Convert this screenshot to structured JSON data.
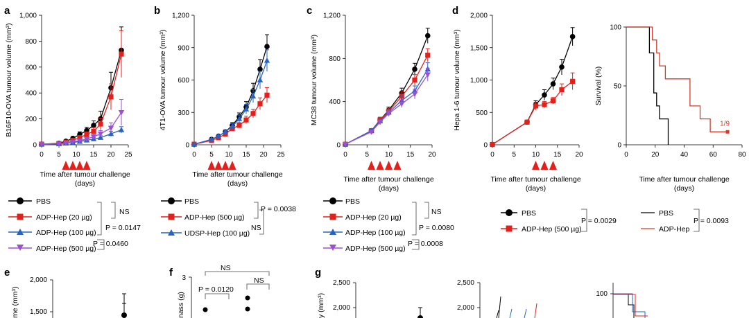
{
  "colors": {
    "PBS": "#000000",
    "ADP20": "#e3211c",
    "ADP100": "#2563c7",
    "ADP500": "#9d4fd3",
    "UDSP": "#2563c7",
    "ADP500_b": "#e3211c",
    "ADP500_c": "#9d4fd3",
    "survival_adp": "#d33a2c",
    "arrow": "#e3211c"
  },
  "figure_notes": {
    "arrow_marker": "red triangles mark treatment days",
    "legend_marker_icons": "circle, square, triangle, inverted-triangle"
  },
  "chart_data": [
    {
      "panel": "a",
      "type": "line",
      "ylabel": "B16F10-OVA tumour volume (mm³)",
      "xlabel": [
        "Time after tumour challenge",
        "(days)"
      ],
      "xlim": [
        0,
        25
      ],
      "ylim": [
        0,
        1000
      ],
      "xticks": [
        "0",
        "5",
        "10",
        "15",
        "20",
        "25"
      ],
      "yticks": [
        "0",
        "200",
        "400",
        "600",
        "800",
        "1,000"
      ],
      "treatment_days": [
        7,
        9,
        11,
        13
      ],
      "x": [
        0,
        5,
        7,
        9,
        11,
        13,
        15,
        17,
        20,
        23
      ],
      "series": [
        {
          "name": "PBS",
          "color_key": "PBS",
          "marker": "circle",
          "values": [
            5,
            12,
            28,
            50,
            80,
            110,
            150,
            200,
            440,
            730
          ],
          "errors": [
            3,
            5,
            8,
            12,
            20,
            25,
            35,
            60,
            120,
            180
          ]
        },
        {
          "name": "ADP-Hep (20 µg)",
          "color_key": "ADP20",
          "marker": "square",
          "values": [
            5,
            10,
            20,
            35,
            55,
            80,
            105,
            160,
            370,
            700
          ],
          "errors": [
            3,
            4,
            6,
            10,
            15,
            20,
            28,
            45,
            100,
            180
          ]
        },
        {
          "name": "ADP-Hep (100 µg)",
          "color_key": "ADP100",
          "marker": "triangle",
          "values": [
            4,
            7,
            12,
            18,
            25,
            35,
            45,
            55,
            85,
            115
          ],
          "errors": [
            2,
            3,
            4,
            6,
            8,
            10,
            12,
            15,
            20,
            25
          ]
        },
        {
          "name": "ADP-Hep (500 µg)",
          "color_key": "ADP500",
          "marker": "inv-triangle",
          "values": [
            4,
            8,
            14,
            22,
            32,
            45,
            62,
            85,
            130,
            250
          ],
          "errors": [
            2,
            3,
            5,
            7,
            10,
            14,
            18,
            25,
            40,
            100
          ]
        }
      ],
      "stats": [
        "NS",
        "P = 0.0147",
        "P = 0.0460"
      ]
    },
    {
      "panel": "b",
      "type": "line",
      "ylabel": "4T1-OVA tumour volume (mm³)",
      "xlabel": [
        "Time after tumour challenge",
        "(days)"
      ],
      "xlim": [
        0,
        25
      ],
      "ylim": [
        0,
        1200
      ],
      "xticks": [
        "0",
        "5",
        "10",
        "15",
        "20",
        "25"
      ],
      "yticks": [
        "0",
        "300",
        "600",
        "900",
        "1,200"
      ],
      "treatment_days": [
        5,
        7,
        9,
        11
      ],
      "x": [
        0,
        5,
        7,
        9,
        11,
        13,
        15,
        17,
        19,
        21
      ],
      "series": [
        {
          "name": "PBS",
          "color_key": "PBS",
          "marker": "circle",
          "values": [
            5,
            50,
            80,
            120,
            180,
            260,
            350,
            500,
            700,
            910
          ],
          "errors": [
            3,
            8,
            12,
            18,
            25,
            35,
            50,
            70,
            90,
            110
          ]
        },
        {
          "name": "ADP-Hep (500 µg)",
          "color_key": "ADP500_b",
          "marker": "square",
          "values": [
            5,
            40,
            65,
            100,
            150,
            180,
            230,
            290,
            380,
            460
          ],
          "errors": [
            3,
            8,
            10,
            15,
            20,
            25,
            35,
            40,
            55,
            70
          ]
        },
        {
          "name": "UDSP-Hep (100 µg)",
          "color_key": "UDSP",
          "marker": "triangle",
          "values": [
            5,
            50,
            80,
            120,
            170,
            240,
            330,
            450,
            600,
            780
          ],
          "errors": [
            3,
            8,
            12,
            15,
            25,
            35,
            45,
            60,
            80,
            100
          ]
        }
      ],
      "stats": [
        "P = 0.0038",
        "NS"
      ]
    },
    {
      "panel": "c",
      "type": "line",
      "ylabel": "MC38 tumour volume (mm³)",
      "xlabel": [
        "Time after tumour challenge",
        "(days)"
      ],
      "xlim": [
        0,
        20
      ],
      "ylim": [
        0,
        1200
      ],
      "xticks": [
        "0",
        "5",
        "10",
        "15",
        "20"
      ],
      "yticks": [
        "0",
        "400",
        "800",
        "1,200"
      ],
      "treatment_days": [
        6,
        8,
        10,
        12
      ],
      "x": [
        0,
        6,
        8,
        10,
        13,
        16,
        19
      ],
      "series": [
        {
          "name": "PBS",
          "color_key": "PBS",
          "marker": "circle",
          "values": [
            5,
            130,
            230,
            320,
            480,
            700,
            1010
          ],
          "errors": [
            3,
            15,
            25,
            30,
            45,
            55,
            70
          ]
        },
        {
          "name": "ADP-Hep (20 µg)",
          "color_key": "ADP20",
          "marker": "square",
          "values": [
            5,
            130,
            230,
            310,
            450,
            600,
            830
          ],
          "errors": [
            3,
            15,
            25,
            30,
            40,
            50,
            60
          ]
        },
        {
          "name": "ADP-Hep (100 µg)",
          "color_key": "ADP100",
          "marker": "triangle",
          "values": [
            5,
            130,
            220,
            300,
            410,
            500,
            700
          ],
          "errors": [
            3,
            15,
            20,
            30,
            40,
            45,
            60
          ]
        },
        {
          "name": "ADP-Hep (500 µg)",
          "color_key": "ADP500_c",
          "marker": "inv-triangle",
          "values": [
            5,
            120,
            210,
            290,
            380,
            470,
            650
          ],
          "errors": [
            3,
            15,
            20,
            25,
            35,
            45,
            60
          ]
        }
      ],
      "stats": [
        "NS",
        "P = 0.0080",
        "P = 0.0008"
      ]
    },
    {
      "panel": "d",
      "type": "line",
      "ylabel": "Hepa 1-6 tumour volume (mm³)",
      "xlabel": [
        "Time after tumour challenge",
        "(days)"
      ],
      "xlim": [
        0,
        20
      ],
      "ylim": [
        0,
        2000
      ],
      "xticks": [
        "0",
        "5",
        "10",
        "15",
        "20"
      ],
      "yticks": [
        "0",
        "500",
        "1,000",
        "1,500",
        "2,000"
      ],
      "treatment_days": [
        10,
        12,
        14
      ],
      "x": [
        0,
        8,
        10,
        12,
        14,
        16,
        18.5
      ],
      "series": [
        {
          "name": "PBS",
          "color_key": "PBS",
          "marker": "circle",
          "values": [
            5,
            350,
            620,
            770,
            940,
            1200,
            1670
          ],
          "errors": [
            3,
            25,
            60,
            80,
            90,
            120,
            140
          ]
        },
        {
          "name": "ADP-Hep (500 µg)",
          "color_key": "ADP20",
          "marker": "square",
          "values": [
            5,
            350,
            600,
            620,
            680,
            850,
            980
          ],
          "errors": [
            3,
            25,
            60,
            50,
            50,
            90,
            130
          ]
        }
      ],
      "stats": [
        "P = 0.0029"
      ]
    },
    {
      "panel": "d-survival",
      "type": "line",
      "ylabel": "Survival (%)",
      "xlabel": [
        "Time after tumour challenge",
        "(days)"
      ],
      "xlim": [
        0,
        80
      ],
      "ylim": [
        0,
        100
      ],
      "xticks": [
        "0",
        "20",
        "40",
        "60",
        "80"
      ],
      "yticks": [
        "0",
        "50",
        "100"
      ],
      "series": [
        {
          "name": "PBS",
          "color_key": "PBS",
          "steps": [
            [
              0,
              100
            ],
            [
              16,
              100
            ],
            [
              16,
              78
            ],
            [
              19,
              78
            ],
            [
              19,
              44
            ],
            [
              21,
              44
            ],
            [
              21,
              33
            ],
            [
              23,
              33
            ],
            [
              23,
              22
            ],
            [
              29,
              22
            ],
            [
              29,
              0
            ]
          ]
        },
        {
          "name": "ADP-Hep",
          "color_key": "survival_adp",
          "steps": [
            [
              0,
              100
            ],
            [
              18,
              100
            ],
            [
              18,
              89
            ],
            [
              21,
              89
            ],
            [
              21,
              78
            ],
            [
              23,
              78
            ],
            [
              23,
              67
            ],
            [
              27,
              67
            ],
            [
              27,
              56
            ],
            [
              44,
              56
            ],
            [
              44,
              33
            ],
            [
              51,
              33
            ],
            [
              51,
              22
            ],
            [
              58,
              22
            ],
            [
              58,
              11
            ],
            [
              70,
              11
            ]
          ]
        }
      ],
      "annotation": "1/9",
      "stats": [
        "P = 0.0093"
      ]
    }
  ],
  "panels_partial": {
    "e": {
      "label": "e",
      "ylabel_fragment": "me (mm³)",
      "yticks": [
        "2,000",
        "1,500"
      ]
    },
    "f": {
      "label": "f",
      "ylabel_fragment": "nass (g)",
      "ytick": "3",
      "stats": [
        "NS",
        "P = 0.0120",
        "NS"
      ]
    },
    "g": {
      "label": "g",
      "ylabel_fragment": "y (mm³)",
      "yticks_left": [
        "2,500",
        "2,000"
      ],
      "yticks_mid": [
        "2,500",
        "2,000"
      ],
      "ytick_right": "100"
    }
  }
}
